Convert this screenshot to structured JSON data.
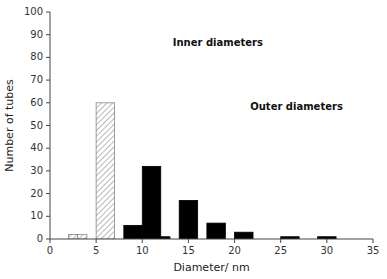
{
  "chart_data": {
    "type": "bar",
    "xlabel": "Diameter/ nm",
    "ylabel": "Number of tubes",
    "series": [
      {
        "name": "Inner diameters",
        "color": "#888888",
        "x": [
          2,
          3,
          5
        ],
        "widths": [
          1,
          1,
          2
        ],
        "values": [
          2,
          2,
          60
        ]
      },
      {
        "name": "Outer diameters",
        "color": "black",
        "x": [
          8,
          10,
          12,
          14,
          17,
          20,
          25,
          29
        ],
        "widths": [
          2,
          2,
          1,
          2,
          2,
          2,
          2,
          2
        ],
        "values": [
          6,
          32,
          1,
          17,
          7,
          3,
          1,
          1
        ]
      }
    ],
    "xlim": [
      0,
      35
    ],
    "ylim": [
      0,
      100
    ],
    "xticks": [
      0,
      5,
      10,
      15,
      20,
      25,
      30,
      35
    ],
    "yticks": [
      0,
      10,
      20,
      30,
      40,
      50,
      60,
      70,
      80,
      90,
      100
    ]
  }
}
